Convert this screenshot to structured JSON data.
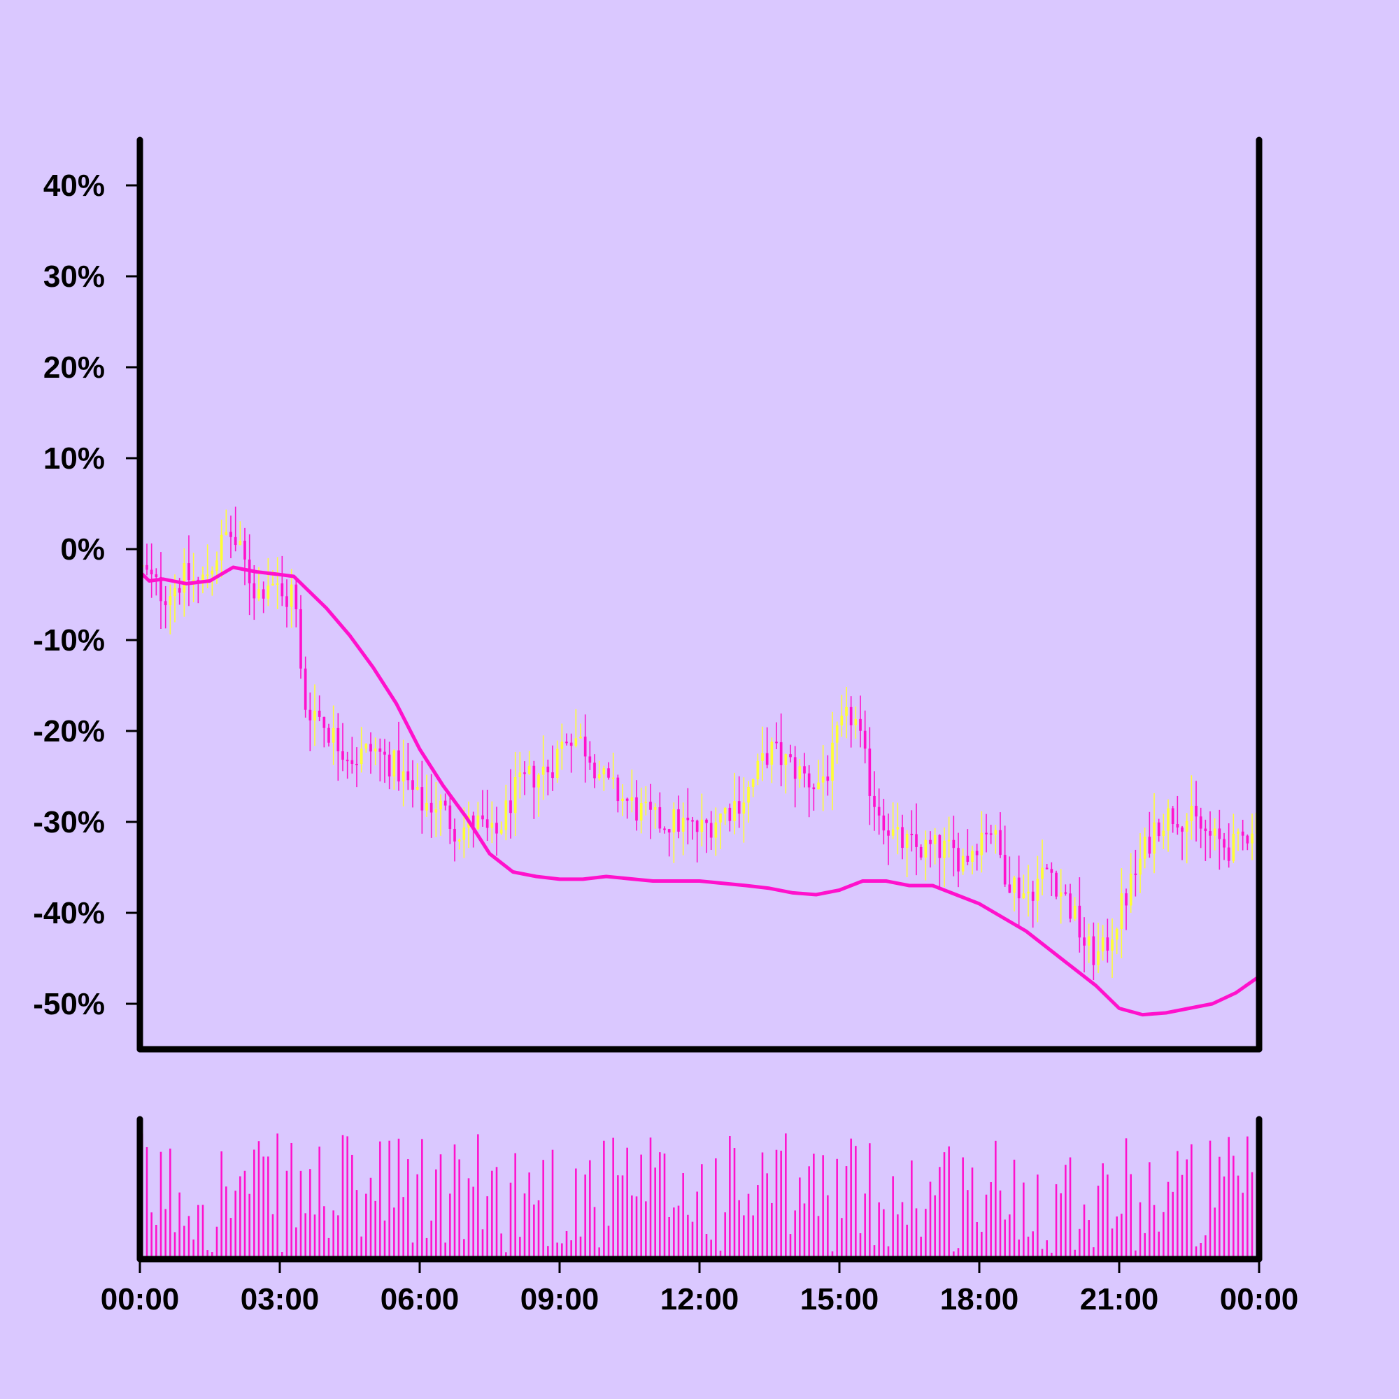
{
  "chart_data": {
    "type": "candlestick",
    "yaxis": {
      "ticks": [
        40,
        30,
        20,
        10,
        0,
        -10,
        -20,
        -30,
        -40,
        -50
      ],
      "tick_labels": [
        "40%",
        "30%",
        "20%",
        "10%",
        "0%",
        "-10%",
        "-20%",
        "-30%",
        "-40%",
        "-50%"
      ],
      "ylim": [
        -55,
        45
      ]
    },
    "xaxis": {
      "tick_labels": [
        "00:00",
        "03:00",
        "06:00",
        "09:00",
        "12:00",
        "15:00",
        "18:00",
        "21:00",
        "00:00"
      ],
      "range_hours": [
        0,
        24
      ]
    },
    "moving_average": {
      "x_hours": [
        0,
        0.2,
        0.5,
        1.0,
        1.5,
        2.0,
        2.5,
        3.0,
        3.3,
        3.6,
        4.0,
        4.5,
        5.0,
        5.5,
        6.0,
        6.5,
        7.0,
        7.5,
        8.0,
        8.5,
        9.0,
        9.5,
        10.0,
        11.0,
        12.0,
        13.0,
        13.5,
        14.0,
        14.5,
        15.0,
        15.5,
        16.0,
        16.5,
        17.0,
        17.5,
        18.0,
        18.5,
        19.0,
        19.5,
        20.0,
        20.5,
        21.0,
        21.5,
        22.0,
        22.5,
        23.0,
        23.5,
        24.0
      ],
      "y_values": [
        -2.5,
        -3.5,
        -3.3,
        -3.8,
        -3.5,
        -2.0,
        -2.5,
        -2.8,
        -3.0,
        -4.5,
        -6.5,
        -9.5,
        -13.0,
        -17.0,
        -22.0,
        -26.0,
        -29.5,
        -33.5,
        -35.5,
        -36.0,
        -36.3,
        -36.3,
        -36.0,
        -36.5,
        -36.5,
        -37.0,
        -37.3,
        -37.8,
        -38.0,
        -37.5,
        -36.5,
        -36.5,
        -37.0,
        -37.0,
        -38.0,
        -39.0,
        -40.5,
        -42.0,
        -44.0,
        -46.0,
        -48.0,
        -50.5,
        -51.2,
        -51.0,
        -50.5,
        -50.0,
        -48.8,
        -47.0
      ],
      "y_note": "in axis percent units"
    },
    "candles_anchor": {
      "x_hours": [
        0,
        0.5,
        1.0,
        1.3,
        1.6,
        1.9,
        2.2,
        2.5,
        2.8,
        3.1,
        3.3,
        3.5,
        3.8,
        4.2,
        4.6,
        5.0,
        5.5,
        6.0,
        6.4,
        6.8,
        7.2,
        7.6,
        8.0,
        8.4,
        8.8,
        9.2,
        9.6,
        10.0,
        10.5,
        11.0,
        11.5,
        12.0,
        12.5,
        13.0,
        13.5,
        14.0,
        14.5,
        14.8,
        15.0,
        15.3,
        15.7,
        16.2,
        16.7,
        17.2,
        17.7,
        18.2,
        18.6,
        19.0,
        19.5,
        20.0,
        20.3,
        20.6,
        21.0,
        21.4,
        21.8,
        22.2,
        22.6,
        23.0,
        23.5,
        24.0
      ],
      "y_values": [
        -2,
        -5,
        -3,
        -4,
        -1,
        2,
        -1,
        -5,
        -3,
        -6,
        -4,
        -17,
        -18,
        -21,
        -23,
        -22,
        -24,
        -28,
        -28,
        -31,
        -30,
        -32,
        -27,
        -25,
        -24,
        -20,
        -22,
        -26,
        -28,
        -30,
        -30,
        -31,
        -29,
        -27,
        -22,
        -24,
        -26,
        -24,
        -20,
        -18,
        -27,
        -32,
        -33,
        -33,
        -34,
        -30,
        -36,
        -38,
        -35,
        -40,
        -44,
        -45,
        -40,
        -35,
        -30,
        -29,
        -30,
        -32,
        -33,
        -29
      ]
    },
    "volume": {
      "ylim": [
        0,
        100
      ],
      "note": "relative volume per candle, axes unlabeled"
    },
    "colors": {
      "background": "#dac8ff",
      "axis": "#000000",
      "candle_up": "#ffff33",
      "candle_down": "#ff11cc",
      "moving_average": "#ff11cc",
      "volume": "#ff11cc"
    }
  }
}
